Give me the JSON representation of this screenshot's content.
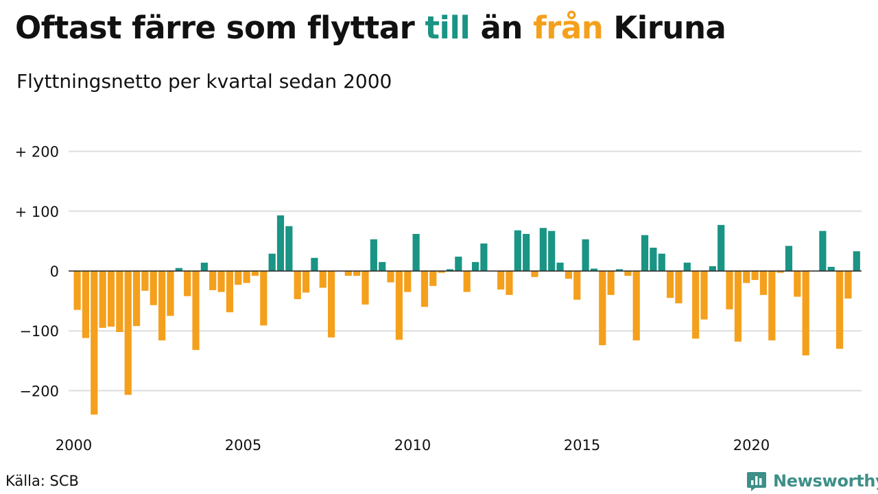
{
  "title": {
    "part1": "Oftast färre som flyttar ",
    "till": "till",
    "part2": " än ",
    "fran": "från",
    "part3": " Kiruna"
  },
  "subtitle": "Flyttningsnetto per kvartal sedan 2000",
  "source": "Källa: SCB",
  "brand": {
    "name": "Newsworthy",
    "icon": "newsworthy-logo-icon",
    "color": "#3d8f88"
  },
  "colors": {
    "positive": "#1a9484",
    "negative": "#f4a01c",
    "grid": "#dddddd",
    "zero_line": "#222222"
  },
  "chart_data": {
    "type": "bar",
    "title": "Oftast färre som flyttar till än från Kiruna",
    "subtitle": "Flyttningsnetto per kvartal sedan 2000",
    "x_tick_labels": [
      "2000",
      "2005",
      "2010",
      "2015",
      "2020"
    ],
    "x_start": 2000,
    "periods_per_year": 4,
    "ylim": [
      -240,
      200
    ],
    "yticks": [
      {
        "value": 200,
        "label": "+ 200"
      },
      {
        "value": 100,
        "label": "+ 100"
      },
      {
        "value": 0,
        "label": "0"
      },
      {
        "value": -100,
        "label": "−100"
      },
      {
        "value": -200,
        "label": "−200"
      }
    ],
    "grid": true,
    "values": [
      -65,
      -112,
      -240,
      -95,
      -93,
      -102,
      -207,
      -92,
      -33,
      -57,
      -116,
      -75,
      5,
      -42,
      -132,
      14,
      -32,
      -35,
      -69,
      -23,
      -20,
      -8,
      -91,
      29,
      93,
      75,
      -47,
      -36,
      22,
      -28,
      -111,
      0,
      -8,
      -8,
      -56,
      53,
      15,
      -19,
      -115,
      -35,
      62,
      -60,
      -25,
      -3,
      3,
      24,
      -35,
      15,
      46,
      0,
      -31,
      -40,
      68,
      62,
      -10,
      72,
      67,
      14,
      -13,
      -48,
      53,
      4,
      -124,
      -40,
      3,
      -8,
      -116,
      60,
      39,
      29,
      -45,
      -54,
      14,
      -113,
      -81,
      8,
      77,
      -64,
      -118,
      -20,
      -15,
      -40,
      -116,
      -3,
      42,
      -43,
      -141,
      0,
      67,
      7,
      -130,
      -46,
      33
    ]
  }
}
